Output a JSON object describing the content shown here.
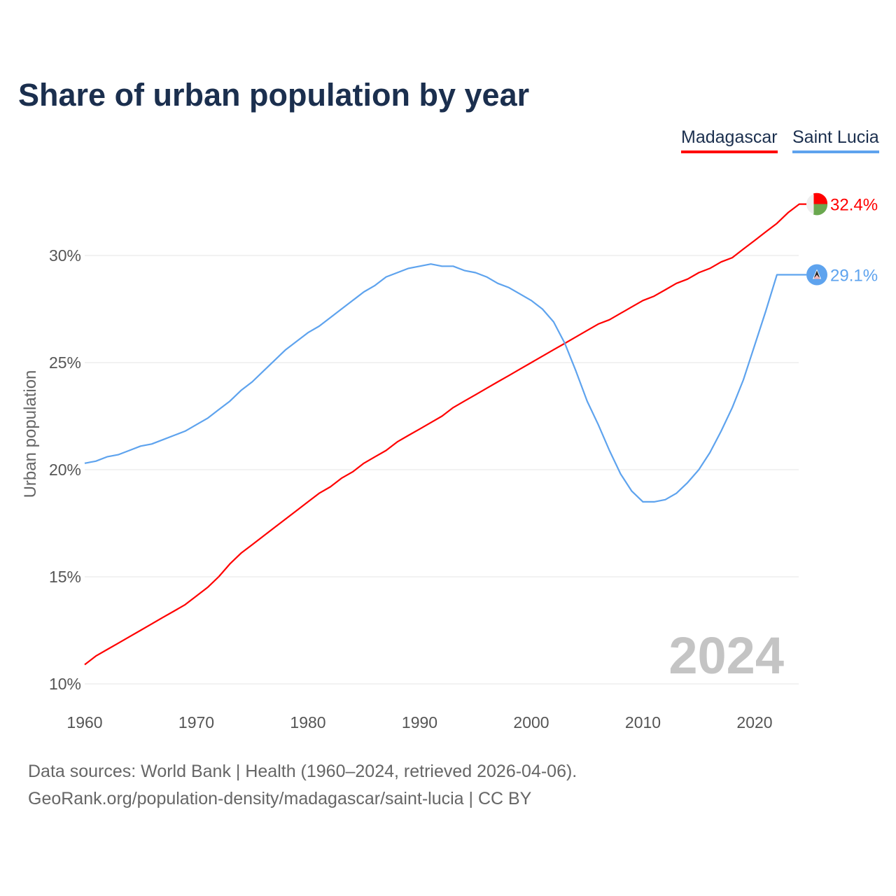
{
  "title": "Share of urban population by year",
  "legend": [
    "Madagascar",
    "Saint Lucia"
  ],
  "footer": {
    "line1": "Data sources: World Bank | Health (1960–2024, retrieved 2026-04-06).",
    "line2": "GeoRank.org/population-density/madagascar/saint-lucia | CC BY"
  },
  "chart_data": {
    "type": "line",
    "title": "Share of urban population by year",
    "xlabel": "",
    "ylabel": "Urban population",
    "xlim": [
      1960,
      2024
    ],
    "ylim": [
      10,
      32.5
    ],
    "x_ticks": [
      1960,
      1970,
      1980,
      1990,
      2000,
      2010,
      2020
    ],
    "x_tick_labels": [
      "1960",
      "1970",
      "1980",
      "1990",
      "2000",
      "2010",
      "2020"
    ],
    "y_ticks": [
      10,
      15,
      20,
      25,
      30
    ],
    "y_tick_labels": [
      "10%",
      "15%",
      "20%",
      "25%",
      "30%"
    ],
    "grid": true,
    "legend_position": "top-right",
    "year_watermark": "2024",
    "x": [
      1960,
      1961,
      1962,
      1963,
      1964,
      1965,
      1966,
      1967,
      1968,
      1969,
      1970,
      1971,
      1972,
      1973,
      1974,
      1975,
      1976,
      1977,
      1978,
      1979,
      1980,
      1981,
      1982,
      1983,
      1984,
      1985,
      1986,
      1987,
      1988,
      1989,
      1990,
      1991,
      1992,
      1993,
      1994,
      1995,
      1996,
      1997,
      1998,
      1999,
      2000,
      2001,
      2002,
      2003,
      2004,
      2005,
      2006,
      2007,
      2008,
      2009,
      2010,
      2011,
      2012,
      2013,
      2014,
      2015,
      2016,
      2017,
      2018,
      2019,
      2020,
      2021,
      2022,
      2023,
      2024
    ],
    "series": [
      {
        "name": "Madagascar",
        "color": "#ff0000",
        "end_label": "32.4%",
        "values": [
          10.9,
          11.3,
          11.6,
          11.9,
          12.2,
          12.5,
          12.8,
          13.1,
          13.4,
          13.7,
          14.1,
          14.5,
          15.0,
          15.6,
          16.1,
          16.5,
          16.9,
          17.3,
          17.7,
          18.1,
          18.5,
          18.9,
          19.2,
          19.6,
          19.9,
          20.3,
          20.6,
          20.9,
          21.3,
          21.6,
          21.9,
          22.2,
          22.5,
          22.9,
          23.2,
          23.5,
          23.8,
          24.1,
          24.4,
          24.7,
          25.0,
          25.3,
          25.6,
          25.9,
          26.2,
          26.5,
          26.8,
          27.0,
          27.3,
          27.6,
          27.9,
          28.1,
          28.4,
          28.7,
          28.9,
          29.2,
          29.4,
          29.7,
          29.9,
          30.3,
          30.7,
          31.1,
          31.5,
          32.0,
          32.4
        ]
      },
      {
        "name": "Saint Lucia",
        "color": "#5ea3ee",
        "end_label": "29.1%",
        "values": [
          20.3,
          20.4,
          20.6,
          20.7,
          20.9,
          21.1,
          21.2,
          21.4,
          21.6,
          21.8,
          22.1,
          22.4,
          22.8,
          23.2,
          23.7,
          24.1,
          24.6,
          25.1,
          25.6,
          26.0,
          26.4,
          26.7,
          27.1,
          27.5,
          27.9,
          28.3,
          28.6,
          29.0,
          29.2,
          29.4,
          29.5,
          29.6,
          29.5,
          29.5,
          29.3,
          29.2,
          29.0,
          28.7,
          28.5,
          28.2,
          27.9,
          27.5,
          26.9,
          25.9,
          24.6,
          23.2,
          22.1,
          20.9,
          19.8,
          19.0,
          18.5,
          18.5,
          18.6,
          18.9,
          19.4,
          20.0,
          20.8,
          21.8,
          22.9,
          24.2,
          25.8,
          27.4,
          29.1,
          29.1,
          29.1
        ]
      }
    ]
  }
}
